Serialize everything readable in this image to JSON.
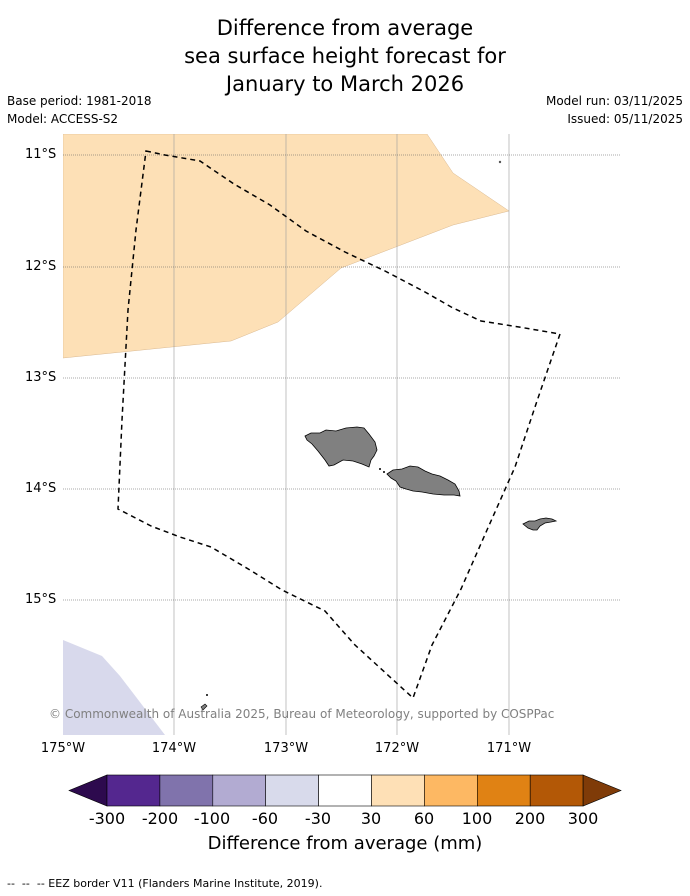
{
  "title": {
    "line1": "Difference from average",
    "line2": "sea surface height forecast for",
    "line3": "January to March 2026"
  },
  "meta": {
    "base_period": "Base period: 1981-2018",
    "model": "Model: ACCESS-S2",
    "model_run": "Model run: 03/11/2025",
    "issued": "Issued: 05/11/2025"
  },
  "map": {
    "lat_labels": [
      "11°S",
      "12°S",
      "13°S",
      "14°S",
      "15°S"
    ],
    "lon_labels": [
      "175°W",
      "174°W",
      "173°W",
      "172°W",
      "171°W"
    ],
    "copyright": "© Commonwealth of Australia 2025, Bureau of Meteorology, supported by COSPPac",
    "colors": {
      "positive_30_60": "#fde0b6",
      "negative_30_60": "#d8d9ec",
      "land": "#808080",
      "gridline": "#a0a0a0",
      "eez_border": "#000000"
    }
  },
  "colorbar": {
    "tick_labels": [
      "-300",
      "-200",
      "-100",
      "-60",
      "-30",
      "30",
      "60",
      "100",
      "200",
      "300"
    ],
    "colors": [
      "#2d0a4e",
      "#54278f",
      "#8073ac",
      "#b2abd2",
      "#d8daeb",
      "#ffffff",
      "#fee0b6",
      "#fdb863",
      "#e08214",
      "#b35806",
      "#7f3b08"
    ],
    "label": "Difference from average (mm)"
  },
  "legend": {
    "eez_text": "-- EEZ border V11 (Flanders Marine Institute, 2019)."
  }
}
